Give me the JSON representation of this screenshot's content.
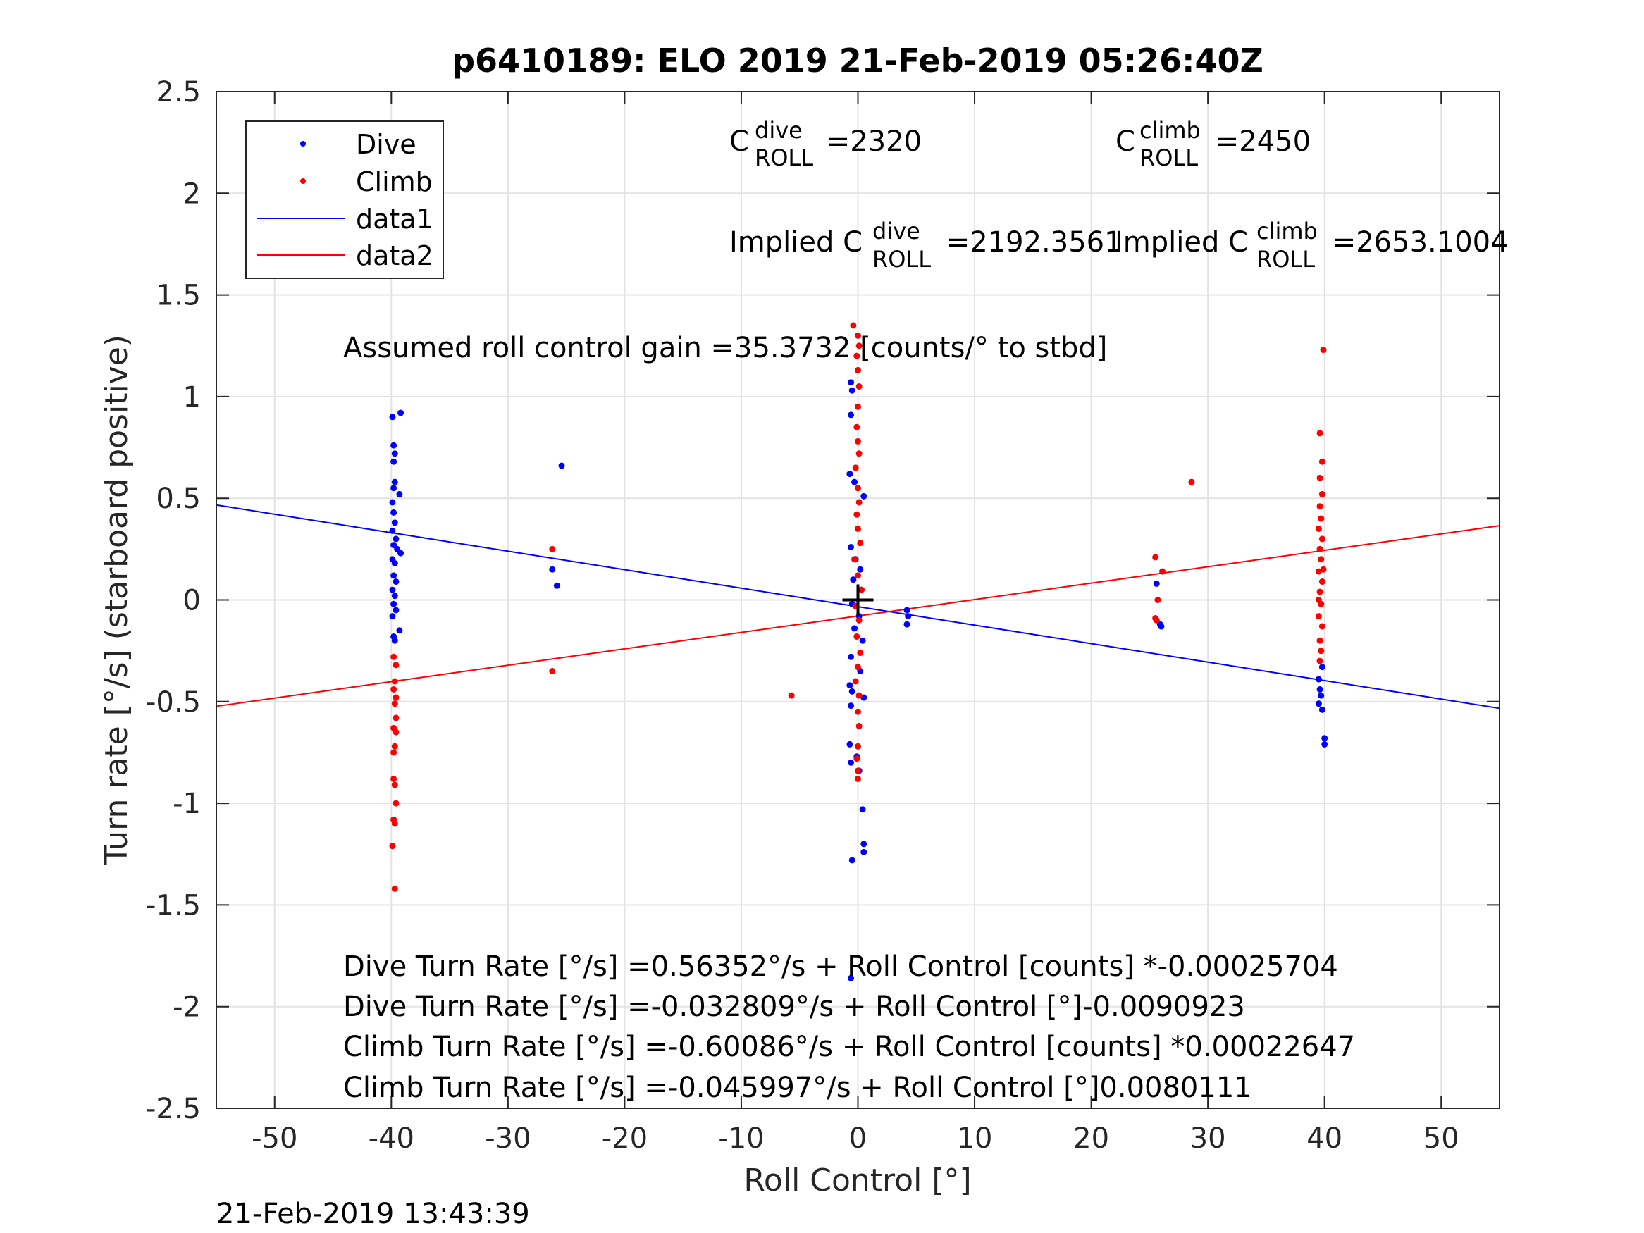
{
  "chart_data": {
    "type": "scatter",
    "title": "p6410189: ELO 2019 21-Feb-2019 05:26:40Z",
    "xlabel": "Roll Control [°]",
    "ylabel": "Turn rate [°/s] (starboard positive)",
    "xlim": [
      -55,
      55
    ],
    "ylim": [
      -2.5,
      2.5
    ],
    "xticks": [
      -50,
      -40,
      -30,
      -20,
      -10,
      0,
      10,
      20,
      30,
      40,
      50
    ],
    "yticks": [
      -2.5,
      -2,
      -1.5,
      -1,
      -0.5,
      0,
      0.5,
      1,
      1.5,
      2,
      2.5
    ],
    "xtick_labels": [
      "-50",
      "-40",
      "-30",
      "-20",
      "-10",
      "0",
      "10",
      "20",
      "30",
      "40",
      "50"
    ],
    "ytick_labels": [
      "-2.5",
      "-2",
      "-1.5",
      "-1",
      "-0.5",
      "0",
      "0.5",
      "1",
      "1.5",
      "2",
      "2.5"
    ],
    "grid": true,
    "legend_position": "top-left",
    "colors": {
      "dive": "#0000ff",
      "climb": "#ff0000",
      "marker": "#000000"
    },
    "legend": [
      "Dive",
      "Climb",
      "data1",
      "data2"
    ],
    "series": [
      {
        "name": "Dive",
        "kind": "points",
        "color": "#0000ff",
        "points": [
          [
            -39.9,
            0.9
          ],
          [
            -39.2,
            0.92
          ],
          [
            -39.8,
            0.76
          ],
          [
            -39.7,
            0.72
          ],
          [
            -39.8,
            0.68
          ],
          [
            -39.7,
            0.58
          ],
          [
            -39.8,
            0.55
          ],
          [
            -39.3,
            0.52
          ],
          [
            -39.9,
            0.48
          ],
          [
            -39.8,
            0.43
          ],
          [
            -39.7,
            0.38
          ],
          [
            -39.9,
            0.34
          ],
          [
            -39.6,
            0.3
          ],
          [
            -39.8,
            0.27
          ],
          [
            -39.5,
            0.25
          ],
          [
            -39.2,
            0.23
          ],
          [
            -39.9,
            0.2
          ],
          [
            -39.7,
            0.18
          ],
          [
            -39.8,
            0.12
          ],
          [
            -39.6,
            0.09
          ],
          [
            -39.9,
            0.05
          ],
          [
            -39.7,
            0.02
          ],
          [
            -39.8,
            -0.02
          ],
          [
            -39.6,
            -0.05
          ],
          [
            -39.9,
            -0.08
          ],
          [
            -39.3,
            -0.15
          ],
          [
            -39.8,
            -0.18
          ],
          [
            -39.7,
            -0.2
          ],
          [
            -26.2,
            0.15
          ],
          [
            -25.8,
            0.07
          ],
          [
            -25.4,
            0.66
          ],
          [
            -0.6,
            1.07
          ],
          [
            -0.5,
            1.03
          ],
          [
            -0.6,
            0.91
          ],
          [
            -0.7,
            0.62
          ],
          [
            -0.3,
            0.58
          ],
          [
            0.5,
            0.51
          ],
          [
            -0.6,
            0.26
          ],
          [
            -0.2,
            0.2
          ],
          [
            0.2,
            0.15
          ],
          [
            -0.4,
            0.1
          ],
          [
            0.3,
            0.05
          ],
          [
            -0.5,
            -0.02
          ],
          [
            0.1,
            -0.08
          ],
          [
            -0.3,
            -0.14
          ],
          [
            0.4,
            -0.2
          ],
          [
            -0.6,
            -0.28
          ],
          [
            0.2,
            -0.35
          ],
          [
            -0.7,
            -0.42
          ],
          [
            -0.5,
            -0.45
          ],
          [
            0.5,
            -0.48
          ],
          [
            -0.6,
            -0.52
          ],
          [
            -0.7,
            -0.71
          ],
          [
            -0.6,
            -0.8
          ],
          [
            -0.1,
            -0.77
          ],
          [
            0.1,
            -0.84
          ],
          [
            -0.5,
            -1.28
          ],
          [
            0.4,
            -1.03
          ],
          [
            0.5,
            -1.2
          ],
          [
            0.5,
            -1.24
          ],
          [
            -0.6,
            -1.86
          ],
          [
            4.2,
            -0.05
          ],
          [
            4.3,
            -0.08
          ],
          [
            4.2,
            -0.12
          ],
          [
            25.6,
            0.08
          ],
          [
            25.9,
            -0.12
          ],
          [
            26.0,
            -0.13
          ],
          [
            39.8,
            -0.33
          ],
          [
            39.5,
            -0.39
          ],
          [
            39.6,
            -0.44
          ],
          [
            39.7,
            -0.47
          ],
          [
            39.5,
            -0.51
          ],
          [
            39.8,
            -0.54
          ],
          [
            40.0,
            -0.68
          ],
          [
            40.0,
            -0.71
          ]
        ]
      },
      {
        "name": "Climb",
        "kind": "points",
        "color": "#ff0000",
        "points": [
          [
            -39.8,
            -0.28
          ],
          [
            -39.6,
            -0.32
          ],
          [
            -39.7,
            -0.4
          ],
          [
            -39.8,
            -0.44
          ],
          [
            -39.6,
            -0.48
          ],
          [
            -39.7,
            -0.51
          ],
          [
            -39.8,
            -0.63
          ],
          [
            -39.6,
            -0.65
          ],
          [
            -39.7,
            -0.72
          ],
          [
            -39.8,
            -0.75
          ],
          [
            -39.7,
            -0.91
          ],
          [
            -39.6,
            -1.0
          ],
          [
            -39.8,
            -1.08
          ],
          [
            -39.7,
            -1.1
          ],
          [
            -39.9,
            -1.21
          ],
          [
            -39.7,
            -1.42
          ],
          [
            -39.8,
            -0.88
          ],
          [
            -39.6,
            -0.58
          ],
          [
            -26.2,
            0.25
          ],
          [
            -26.2,
            -0.35
          ],
          [
            -5.7,
            -0.47
          ],
          [
            -0.4,
            1.35
          ],
          [
            0.0,
            1.3
          ],
          [
            0.1,
            1.25
          ],
          [
            -0.1,
            1.2
          ],
          [
            0.0,
            1.13
          ],
          [
            0.1,
            1.05
          ],
          [
            0.0,
            0.95
          ],
          [
            -0.1,
            0.85
          ],
          [
            0.0,
            0.78
          ],
          [
            0.1,
            0.72
          ],
          [
            -0.2,
            0.65
          ],
          [
            0.0,
            0.55
          ],
          [
            0.1,
            0.48
          ],
          [
            -0.1,
            0.42
          ],
          [
            0.0,
            0.35
          ],
          [
            0.2,
            0.28
          ],
          [
            -0.3,
            0.2
          ],
          [
            0.0,
            0.12
          ],
          [
            0.3,
            0.05
          ],
          [
            -0.2,
            -0.03
          ],
          [
            0.1,
            -0.1
          ],
          [
            -0.1,
            -0.18
          ],
          [
            0.2,
            -0.26
          ],
          [
            0.0,
            -0.33
          ],
          [
            -0.2,
            -0.4
          ],
          [
            0.1,
            -0.47
          ],
          [
            0.0,
            -0.55
          ],
          [
            0.1,
            -0.62
          ],
          [
            0.0,
            -0.72
          ],
          [
            -0.1,
            -0.78
          ],
          [
            0.0,
            -0.84
          ],
          [
            0.0,
            -0.88
          ],
          [
            25.5,
            0.21
          ],
          [
            25.7,
            0.0
          ],
          [
            25.6,
            -0.1
          ],
          [
            26.1,
            0.14
          ],
          [
            25.5,
            -0.09
          ],
          [
            28.6,
            0.58
          ],
          [
            39.6,
            0.82
          ],
          [
            39.9,
            1.23
          ],
          [
            39.8,
            0.68
          ],
          [
            39.6,
            0.6
          ],
          [
            39.8,
            0.52
          ],
          [
            39.6,
            0.46
          ],
          [
            39.7,
            0.4
          ],
          [
            39.5,
            0.35
          ],
          [
            39.8,
            0.3
          ],
          [
            39.6,
            0.25
          ],
          [
            39.7,
            0.2
          ],
          [
            39.5,
            0.14
          ],
          [
            39.8,
            0.09
          ],
          [
            39.6,
            0.04
          ],
          [
            39.7,
            -0.02
          ],
          [
            39.5,
            -0.08
          ],
          [
            39.8,
            -0.13
          ],
          [
            39.6,
            -0.2
          ],
          [
            39.7,
            -0.25
          ],
          [
            39.6,
            -0.3
          ],
          [
            39.5,
            0.0
          ],
          [
            39.9,
            0.15
          ]
        ]
      },
      {
        "name": "data1",
        "kind": "line",
        "color": "#0000ff",
        "points": [
          [
            -55,
            0.467
          ],
          [
            55,
            -0.533
          ]
        ]
      },
      {
        "name": "data2",
        "kind": "line",
        "color": "#ff0000",
        "points": [
          [
            -55,
            -0.523
          ],
          [
            55,
            0.365
          ]
        ]
      }
    ],
    "marker": {
      "x": 0,
      "y": 0,
      "symbol": "+"
    },
    "annotations": [
      {
        "id": "cdive",
        "base": "C",
        "sup": "dive",
        "sub": "ROLL",
        "suffix": " =2320"
      },
      {
        "id": "cclimb",
        "base": "C",
        "sup": "climb",
        "sub": "ROLL",
        "suffix": " =2450"
      },
      {
        "id": "idive",
        "base": "Implied C",
        "sup": "dive",
        "sub": "ROLL",
        "suffix": " =2192.3561"
      },
      {
        "id": "iclimb",
        "base": "Implied C",
        "sup": "climb",
        "sub": "ROLL",
        "suffix": " =2653.1004"
      },
      {
        "id": "gain",
        "text": "Assumed roll control gain =35.3732 [counts/° to stbd]"
      },
      {
        "id": "eq1",
        "text": "Dive Turn Rate [°/s] =0.56352°/s + Roll Control [counts] *-0.00025704"
      },
      {
        "id": "eq2",
        "text": "Dive Turn Rate [°/s] =-0.032809°/s + Roll Control [°]-0.0090923"
      },
      {
        "id": "eq3",
        "text": "Climb Turn Rate [°/s] =-0.60086°/s + Roll Control [counts] *0.00022647"
      },
      {
        "id": "eq4",
        "text": "Climb Turn Rate [°/s] =-0.045997°/s + Roll Control [°]0.0080111"
      }
    ]
  },
  "timestamp": "21-Feb-2019 13:43:39"
}
